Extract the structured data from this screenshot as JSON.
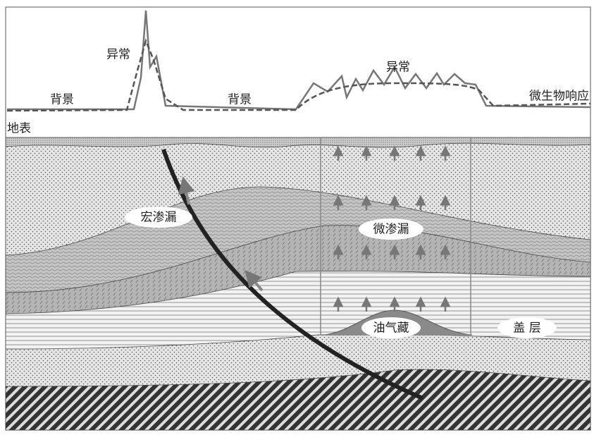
{
  "profile": {
    "background_left": "背景",
    "anomaly_left": "异常",
    "background_mid": "背景",
    "anomaly_right": "异常",
    "response": "微生物响应"
  },
  "section": {
    "surface": "地表",
    "macro_seepage": "宏渗漏",
    "micro_seepage": "微渗漏",
    "reservoir": "油气藏",
    "cap_rock": "盖 层"
  }
}
